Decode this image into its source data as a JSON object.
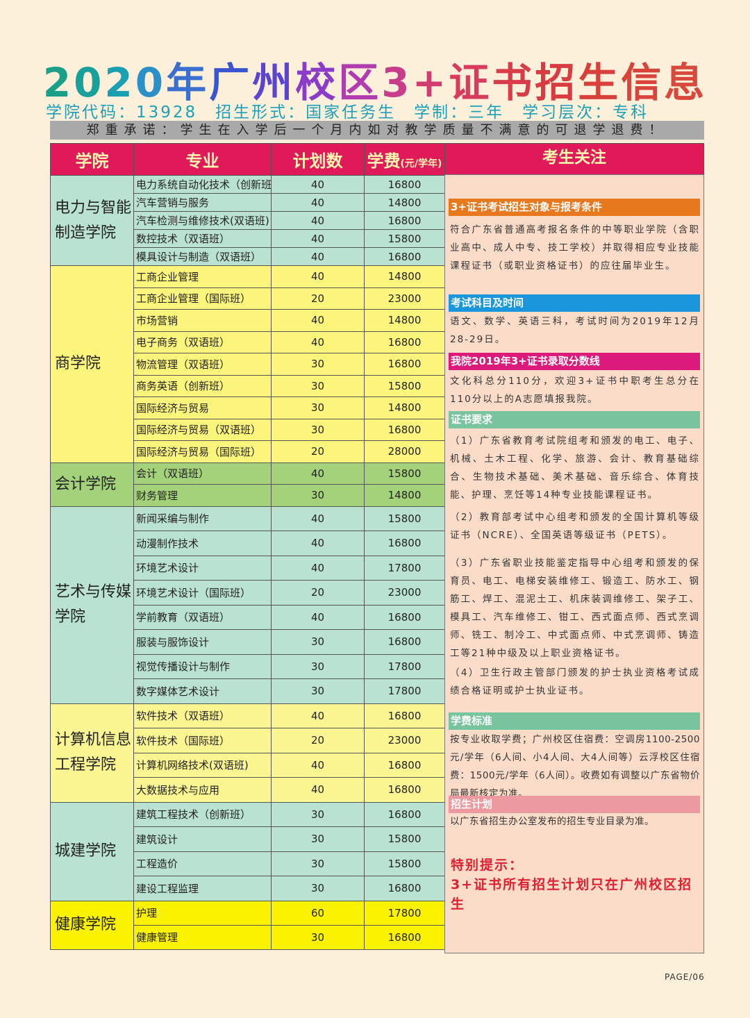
{
  "title": {
    "text": "2020年广州校区3+证书招生信息",
    "chars": [
      "2",
      "0",
      "2",
      "0",
      "年",
      "广",
      "州",
      "校",
      "区",
      "3",
      "+",
      "证",
      "书",
      "招",
      "生",
      "信",
      "息"
    ],
    "colors": [
      "#1aa088",
      "#1aa09a",
      "#1aa0b0",
      "#2a90c8",
      "#3a6fd0",
      "#3a55d0",
      "#5a45d0",
      "#8a3cc8",
      "#b03cb0",
      "#c83c8c",
      "#d03c70",
      "#d83c5c",
      "#d83c48",
      "#d83c40",
      "#d8403c",
      "#d8443c",
      "#d8483c"
    ]
  },
  "subtitle": "学院代码：13928　招生形式：国家任务生　学制：三年　学习层次：专科",
  "banner": "郑重承诺：学生在入学后一个月内如对教学质量不满意的可退学退费！",
  "table": {
    "headers": {
      "college": "学院",
      "major": "专业",
      "plan": "计划数",
      "fee": "学费",
      "fee_unit": "(元/学年)"
    },
    "groups": [
      {
        "college": "电力与智能制造学院",
        "color": "#b9e2d0",
        "rows": [
          [
            "电力系统自动化技术（创新班）",
            "40",
            "16800"
          ],
          [
            "汽车营销与服务",
            "40",
            "14800"
          ],
          [
            "汽车检测与维修技术(双语班)",
            "40",
            "16800"
          ],
          [
            "数控技术（双语班）",
            "40",
            "15800"
          ],
          [
            "模具设计与制造（双语班）",
            "40",
            "16800"
          ]
        ]
      },
      {
        "college": "商学院",
        "color": "#fbf57c",
        "rows": [
          [
            "工商企业管理",
            "40",
            "14800"
          ],
          [
            "工商企业管理（国际班）",
            "20",
            "23000"
          ],
          [
            "市场营销",
            "40",
            "14800"
          ],
          [
            "电子商务（双语班）",
            "40",
            "16800"
          ],
          [
            "物流管理（双语班）",
            "30",
            "16800"
          ],
          [
            "商务英语（创新班）",
            "30",
            "15800"
          ],
          [
            "国际经济与贸易",
            "30",
            "14800"
          ],
          [
            "国际经济与贸易（双语班）",
            "30",
            "16800"
          ],
          [
            "国际经济与贸易（国际班）",
            "20",
            "28000"
          ]
        ]
      },
      {
        "college": "会计学院",
        "color": "#a4d27a",
        "rows": [
          [
            "会计（双语班）",
            "40",
            "15800"
          ],
          [
            "财务管理",
            "30",
            "14800"
          ]
        ]
      },
      {
        "college": "艺术与传媒学院",
        "color": "#b9e2d0",
        "rows": [
          [
            "新闻采编与制作",
            "40",
            "15800"
          ],
          [
            "动漫制作技术",
            "40",
            "16800"
          ],
          [
            "环境艺术设计",
            "40",
            "17800"
          ],
          [
            "环境艺术设计（国际班）",
            "20",
            "23000"
          ],
          [
            "学前教育（双语班）",
            "40",
            "16800"
          ],
          [
            "服装与服饰设计",
            "30",
            "16800"
          ],
          [
            "视觉传播设计与制作",
            "30",
            "17800"
          ],
          [
            "数字媒体艺术设计",
            "30",
            "17800"
          ]
        ]
      },
      {
        "college": "计算机信息工程学院",
        "color": "#fbf592",
        "rows": [
          [
            "软件技术（双语班）",
            "40",
            "16800"
          ],
          [
            "软件技术（国际班）",
            "20",
            "23000"
          ],
          [
            "计算机网络技术(双语班)",
            "40",
            "16800"
          ],
          [
            "大数据技术与应用",
            "40",
            "16800"
          ]
        ]
      },
      {
        "college": "城建学院",
        "color": "#b9e2d0",
        "rows": [
          [
            "建筑工程技术（创新班）",
            "30",
            "16800"
          ],
          [
            "建筑设计",
            "30",
            "15800"
          ],
          [
            "工程造价",
            "30",
            "15800"
          ],
          [
            "建设工程监理",
            "30",
            "16800"
          ]
        ]
      },
      {
        "college": "健康学院",
        "color": "#fbf200",
        "rows": [
          [
            "护理",
            "60",
            "17800"
          ],
          [
            "健康管理",
            "30",
            "16800"
          ]
        ]
      }
    ]
  },
  "panel": {
    "header": "考生关注",
    "sections": [
      {
        "title": "3+证书考试招生对象与报考条件",
        "color": "#e8781e",
        "paras": [
          "符合广东省普通高考报名条件的中等职业学院（含职业高中、成人中专、技工学校）并取得相应专业技能课程证书（或职业资格证书）的应往届毕业生。"
        ]
      },
      {
        "title": "考试科目及时间",
        "color": "#1a96dc",
        "paras": [
          "语文、数学、英语三科，考试时间为2019年12月28-29日。"
        ]
      },
      {
        "title": "我院2019年3+证书录取分数线",
        "color": "#dc1a7c",
        "paras": [
          "文化科总分110分，欢迎3+证书中职考生总分在110分以上的A志愿填报我院。"
        ]
      },
      {
        "title": "证书要求",
        "color": "#78c49e",
        "paras": [
          "（1）广东省教育考试院组考和颁发的电工、电子、机械、土木工程、化学、旅游、会计、教育基础综合、生物技术基础、美术基础、音乐综合、体育技能、护理、烹饪等14种专业技能课程证书。",
          "（2）教育部考试中心组考和颁发的全国计算机等级证书（NCRE）、全国英语等级证书（PETS）。",
          "（3）广东省职业技能鉴定指导中心组考和颁发的保育员、电工、电梯安装维修工、锻造工、防水工、钢筋工、焊工、混泥土工、机床装调维修工、架子工、模具工、汽车维修工、钳工、西式面点师、西式烹调师、铣工、制冷工、中式面点师、中式烹调师、铸造工等21种中级及以上职业资格证书。",
          "（4）卫生行政主管部门颁发的护士执业资格考试成绩合格证明或护士执业证书。"
        ]
      },
      {
        "title": "学费标准",
        "color": "#78c49e",
        "paras": [
          "按专业收取学费；广州校区住宿费：空调房1100-2500元/学年（6人间、小4人间、大4人间等）云浮校区住宿费：1500元/学年（6人间）。收费如有调整以广东省物价局最新核定为准。"
        ]
      },
      {
        "title": "招生计划",
        "color": "#ec9aa0",
        "paras": [
          "以广东省招生办公室发布的招生专业目录为准。"
        ]
      }
    ],
    "tip_title": "特别提示：",
    "tip_text": "3+证书所有招生计划只在广州校区招生"
  },
  "page_label": "PAGE/06"
}
